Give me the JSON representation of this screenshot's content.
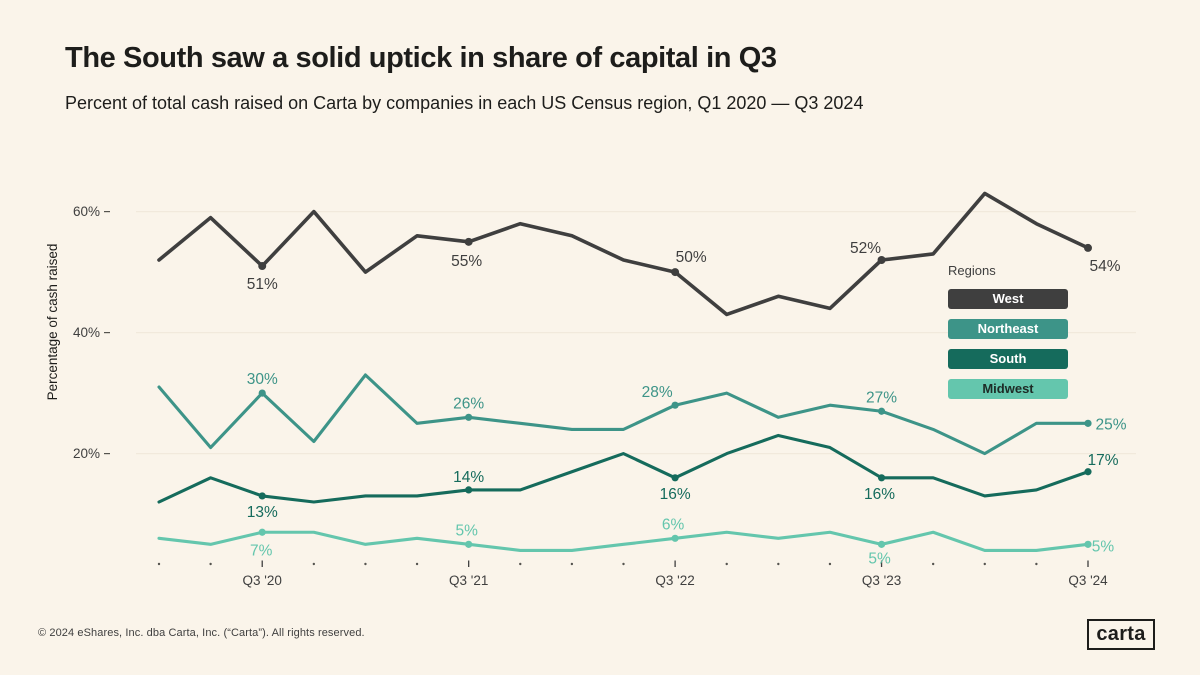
{
  "header": {
    "title": "The South saw a solid uptick in share of capital in Q3",
    "subtitle": "Percent of total cash raised on Carta by companies in each US Census region, Q1 2020 — Q3 2024"
  },
  "legend": {
    "title": "Regions",
    "items": [
      {
        "label": "West",
        "color": "#3F3F3F",
        "text_color": "#FFFFFF"
      },
      {
        "label": "Northeast",
        "color": "#3D9488",
        "text_color": "#FFFFFF"
      },
      {
        "label": "South",
        "color": "#156B5C",
        "text_color": "#FFFFFF"
      },
      {
        "label": "Midwest",
        "color": "#64C6AD",
        "text_color": "#1E2B26"
      }
    ]
  },
  "footer": {
    "copyright": "© 2024 eShares, Inc. dba Carta, Inc. (“Carta”). All rights reserved.",
    "logo": "carta"
  },
  "chart_data": {
    "type": "line",
    "ylabel": "Percentage of cash raised",
    "ylim": [
      0,
      68
    ],
    "grid": true,
    "legend_position": "right-middle",
    "y_ticks": [
      {
        "value": 20,
        "label": "20%"
      },
      {
        "value": 40,
        "label": "40%"
      },
      {
        "value": 60,
        "label": "60%"
      }
    ],
    "x_categories": [
      "Q1 '20",
      "Q2 '20",
      "Q3 '20",
      "Q4 '20",
      "Q1 '21",
      "Q2 '21",
      "Q3 '21",
      "Q4 '21",
      "Q1 '22",
      "Q2 '22",
      "Q3 '22",
      "Q4 '22",
      "Q1 '23",
      "Q2 '23",
      "Q3 '23",
      "Q4 '23",
      "Q1 '24",
      "Q2 '24",
      "Q3 '24"
    ],
    "x_axis_labels": [
      {
        "index": 2,
        "label": "Q3 '20"
      },
      {
        "index": 6,
        "label": "Q3 '21"
      },
      {
        "index": 10,
        "label": "Q3 '22"
      },
      {
        "index": 14,
        "label": "Q3 '23"
      },
      {
        "index": 18,
        "label": "Q3 '24"
      }
    ],
    "series": [
      {
        "name": "West",
        "color": "#3F3F3F",
        "values": [
          52,
          59,
          51,
          60,
          50,
          56,
          55,
          58,
          56,
          52,
          50,
          43,
          46,
          44,
          52,
          53,
          63,
          58,
          54
        ],
        "point_labels": [
          {
            "index": 2,
            "text": "51%",
            "dx": 0,
            "dy": 18
          },
          {
            "index": 6,
            "text": "55%",
            "dx": -2,
            "dy": 19
          },
          {
            "index": 10,
            "text": "50%",
            "dx": 16,
            "dy": -15
          },
          {
            "index": 14,
            "text": "52%",
            "dx": -16,
            "dy": -12
          },
          {
            "index": 18,
            "text": "54%",
            "dx": 17,
            "dy": 18
          }
        ]
      },
      {
        "name": "Northeast",
        "color": "#3D9488",
        "values": [
          31,
          21,
          30,
          22,
          33,
          25,
          26,
          25,
          24,
          24,
          28,
          30,
          26,
          28,
          27,
          24,
          20,
          25,
          25
        ],
        "point_labels": [
          {
            "index": 2,
            "text": "30%",
            "dx": 0,
            "dy": -14
          },
          {
            "index": 6,
            "text": "26%",
            "dx": 0,
            "dy": -14
          },
          {
            "index": 10,
            "text": "28%",
            "dx": -18,
            "dy": -13
          },
          {
            "index": 14,
            "text": "27%",
            "dx": 0,
            "dy": -14
          },
          {
            "index": 18,
            "text": "25%",
            "dx": 23,
            "dy": 1
          }
        ]
      },
      {
        "name": "South",
        "color": "#156B5C",
        "values": [
          12,
          16,
          13,
          12,
          13,
          13,
          14,
          14,
          17,
          20,
          16,
          20,
          23,
          21,
          16,
          16,
          13,
          14,
          17
        ],
        "point_labels": [
          {
            "index": 2,
            "text": "13%",
            "dx": 0,
            "dy": 16
          },
          {
            "index": 6,
            "text": "14%",
            "dx": 0,
            "dy": -13
          },
          {
            "index": 10,
            "text": "16%",
            "dx": 0,
            "dy": 16
          },
          {
            "index": 14,
            "text": "16%",
            "dx": -2,
            "dy": 16
          },
          {
            "index": 18,
            "text": "17%",
            "dx": 15,
            "dy": -12
          }
        ]
      },
      {
        "name": "Midwest",
        "color": "#64C6AD",
        "values": [
          6,
          5,
          7,
          7,
          5,
          6,
          5,
          4,
          4,
          5,
          6,
          7,
          6,
          7,
          5,
          7,
          4,
          4,
          5
        ],
        "point_labels": [
          {
            "index": 2,
            "text": "7%",
            "dx": -1,
            "dy": 18
          },
          {
            "index": 6,
            "text": "5%",
            "dx": -2,
            "dy": -14
          },
          {
            "index": 10,
            "text": "6%",
            "dx": -2,
            "dy": -14
          },
          {
            "index": 14,
            "text": "5%",
            "dx": -2,
            "dy": 14
          },
          {
            "index": 18,
            "text": "5%",
            "dx": 15,
            "dy": 2
          }
        ]
      }
    ]
  }
}
